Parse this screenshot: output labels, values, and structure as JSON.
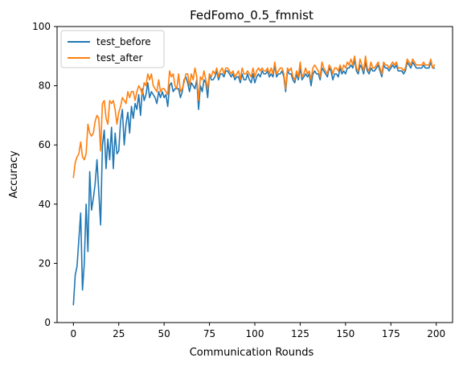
{
  "chart_data": {
    "type": "line",
    "title": "FedFomo_0.5_fmnist",
    "xlabel": "Communication Rounds",
    "ylabel": "Accuracy",
    "xlim": [
      -9,
      209
    ],
    "ylim": [
      0,
      100
    ],
    "xticks": [
      0,
      25,
      50,
      75,
      100,
      125,
      150,
      175,
      200
    ],
    "yticks": [
      0,
      20,
      40,
      60,
      80,
      100
    ],
    "grid": false,
    "legend_position": "top-left",
    "series": [
      {
        "name": "test_before",
        "color": "#1f77b4",
        "x": [
          0,
          1,
          2,
          3,
          4,
          5,
          6,
          7,
          8,
          9,
          10,
          11,
          12,
          13,
          14,
          15,
          16,
          17,
          18,
          19,
          20,
          21,
          22,
          23,
          24,
          25,
          26,
          27,
          28,
          29,
          30,
          31,
          32,
          33,
          34,
          35,
          36,
          37,
          38,
          39,
          40,
          41,
          42,
          43,
          44,
          45,
          46,
          47,
          48,
          49,
          50,
          51,
          52,
          53,
          54,
          55,
          56,
          57,
          58,
          59,
          60,
          61,
          62,
          63,
          64,
          65,
          66,
          67,
          68,
          69,
          70,
          71,
          72,
          73,
          74,
          75,
          76,
          77,
          78,
          79,
          80,
          81,
          82,
          83,
          84,
          85,
          86,
          87,
          88,
          89,
          90,
          91,
          92,
          93,
          94,
          95,
          96,
          97,
          98,
          99,
          100,
          101,
          102,
          103,
          104,
          105,
          106,
          107,
          108,
          109,
          110,
          111,
          112,
          113,
          114,
          115,
          116,
          117,
          118,
          119,
          120,
          121,
          122,
          123,
          124,
          125,
          126,
          127,
          128,
          129,
          130,
          131,
          132,
          133,
          134,
          135,
          136,
          137,
          138,
          139,
          140,
          141,
          142,
          143,
          144,
          145,
          146,
          147,
          148,
          149,
          150,
          151,
          152,
          153,
          154,
          155,
          156,
          157,
          158,
          159,
          160,
          161,
          162,
          163,
          164,
          165,
          166,
          167,
          168,
          169,
          170,
          171,
          172,
          173,
          174,
          175,
          176,
          177,
          178,
          179,
          180,
          181,
          182,
          183,
          184,
          185,
          186,
          187,
          188,
          189,
          190,
          191,
          192,
          193,
          194,
          195,
          196,
          197,
          198,
          199
        ],
        "y": [
          6,
          16,
          19,
          28,
          37,
          11,
          20,
          40,
          24,
          51,
          38,
          42,
          47,
          55,
          44,
          33,
          60,
          65,
          52,
          62,
          55,
          66,
          52,
          64,
          57,
          58,
          68,
          72,
          60,
          67,
          71,
          64,
          73,
          69,
          74,
          72,
          77,
          70,
          79,
          75,
          77,
          81,
          76,
          78,
          77,
          76,
          74,
          78,
          76,
          78,
          76,
          77,
          73,
          80,
          81,
          78,
          79,
          79,
          79,
          76,
          78,
          82,
          83,
          81,
          78,
          81,
          80,
          79,
          82,
          72,
          80,
          78,
          82,
          81,
          76,
          84,
          82,
          82,
          83,
          85,
          82,
          84,
          84,
          83,
          85,
          85,
          84,
          83,
          84,
          82,
          83,
          83,
          81,
          84,
          82,
          82,
          84,
          82,
          81,
          84,
          81,
          83,
          84,
          83,
          85,
          84,
          84,
          85,
          83,
          84,
          83,
          87,
          83,
          84,
          84,
          85,
          83,
          78,
          85,
          84,
          84,
          82,
          81,
          84,
          82,
          86,
          82,
          83,
          84,
          83,
          84,
          80,
          84,
          85,
          84,
          84,
          82,
          86,
          85,
          84,
          83,
          86,
          85,
          82,
          84,
          84,
          83,
          86,
          84,
          85,
          84,
          86,
          86,
          87,
          86,
          89,
          85,
          84,
          87,
          86,
          84,
          88,
          85,
          84,
          86,
          85,
          85,
          86,
          87,
          85,
          83,
          87,
          86,
          86,
          85,
          86,
          87,
          86,
          87,
          85,
          85,
          85,
          84,
          85,
          88,
          87,
          86,
          88,
          87,
          86,
          86,
          86,
          86,
          87,
          86,
          86,
          86,
          88,
          86,
          86
        ],
        "note": ""
      },
      {
        "name": "test_after",
        "color": "#ff7f0e",
        "x": [
          0,
          1,
          2,
          3,
          4,
          5,
          6,
          7,
          8,
          9,
          10,
          11,
          12,
          13,
          14,
          15,
          16,
          17,
          18,
          19,
          20,
          21,
          22,
          23,
          24,
          25,
          26,
          27,
          28,
          29,
          30,
          31,
          32,
          33,
          34,
          35,
          36,
          37,
          38,
          39,
          40,
          41,
          42,
          43,
          44,
          45,
          46,
          47,
          48,
          49,
          50,
          51,
          52,
          53,
          54,
          55,
          56,
          57,
          58,
          59,
          60,
          61,
          62,
          63,
          64,
          65,
          66,
          67,
          68,
          69,
          70,
          71,
          72,
          73,
          74,
          75,
          76,
          77,
          78,
          79,
          80,
          81,
          82,
          83,
          84,
          85,
          86,
          87,
          88,
          89,
          90,
          91,
          92,
          93,
          94,
          95,
          96,
          97,
          98,
          99,
          100,
          101,
          102,
          103,
          104,
          105,
          106,
          107,
          108,
          109,
          110,
          111,
          112,
          113,
          114,
          115,
          116,
          117,
          118,
          119,
          120,
          121,
          122,
          123,
          124,
          125,
          126,
          127,
          128,
          129,
          130,
          131,
          132,
          133,
          134,
          135,
          136,
          137,
          138,
          139,
          140,
          141,
          142,
          143,
          144,
          145,
          146,
          147,
          148,
          149,
          150,
          151,
          152,
          153,
          154,
          155,
          156,
          157,
          158,
          159,
          160,
          161,
          162,
          163,
          164,
          165,
          166,
          167,
          168,
          169,
          170,
          171,
          172,
          173,
          174,
          175,
          176,
          177,
          178,
          179,
          180,
          181,
          182,
          183,
          184,
          185,
          186,
          187,
          188,
          189,
          190,
          191,
          192,
          193,
          194,
          195,
          196,
          197,
          198,
          199
        ],
        "y": [
          49,
          54,
          56,
          57,
          61,
          56,
          55,
          57,
          67,
          64,
          63,
          64,
          68,
          70,
          69,
          58,
          74,
          75,
          69,
          67,
          75,
          74,
          75,
          72,
          67,
          71,
          73,
          76,
          75,
          74,
          78,
          76,
          78,
          78,
          75,
          78,
          80,
          79,
          77,
          81,
          80,
          84,
          82,
          84,
          80,
          79,
          78,
          82,
          78,
          79,
          79,
          78,
          77,
          85,
          83,
          84,
          80,
          79,
          84,
          78,
          79,
          81,
          84,
          84,
          80,
          84,
          82,
          86,
          83,
          75,
          83,
          82,
          85,
          82,
          79,
          84,
          83,
          85,
          84,
          86,
          83,
          85,
          86,
          84,
          86,
          86,
          85,
          84,
          85,
          83,
          84,
          85,
          82,
          86,
          84,
          84,
          85,
          84,
          83,
          86,
          83,
          85,
          86,
          85,
          86,
          85,
          85,
          86,
          84,
          86,
          84,
          88,
          84,
          85,
          86,
          86,
          84,
          79,
          86,
          85,
          86,
          83,
          82,
          85,
          83,
          88,
          83,
          84,
          86,
          84,
          85,
          82,
          86,
          87,
          86,
          85,
          83,
          88,
          86,
          85,
          84,
          87,
          86,
          84,
          86,
          86,
          85,
          87,
          85,
          87,
          86,
          88,
          87,
          89,
          87,
          90,
          86,
          85,
          89,
          87,
          85,
          90,
          86,
          85,
          88,
          86,
          86,
          87,
          88,
          86,
          84,
          88,
          87,
          87,
          86,
          87,
          88,
          87,
          88,
          86,
          86,
          86,
          85,
          86,
          89,
          88,
          87,
          89,
          88,
          87,
          87,
          87,
          87,
          88,
          87,
          87,
          87,
          89,
          86,
          87
        ]
      }
    ]
  }
}
